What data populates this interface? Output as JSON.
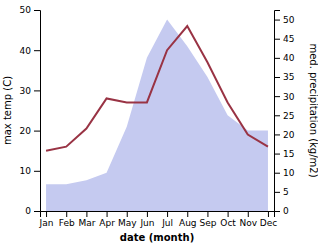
{
  "chart_data": {
    "type": "line",
    "x_label": "date (month)",
    "y_label": "max temp (C)",
    "y2_label": "med. precipitation (kg/m2)",
    "categories": [
      "Jan",
      "Feb",
      "Mar",
      "Apr",
      "May",
      "Jun",
      "Jul",
      "Aug",
      "Sep",
      "Oct",
      "Nov",
      "Dec"
    ],
    "series": [
      {
        "type": "area",
        "color": "#c5caf0",
        "axis": "y2",
        "values": [
          7.0,
          7.0,
          8.0,
          10.0,
          22.0,
          40.0,
          50.0,
          43.0,
          35.0,
          25.0,
          21.0,
          21.0
        ]
      },
      {
        "type": "line",
        "color": "#993344",
        "values": [
          15.0,
          16.0,
          20.5,
          28.0,
          27.0,
          27.0,
          40.0,
          46.0,
          37.0,
          27.0,
          19.0,
          16.0
        ]
      }
    ],
    "ylim": [
      0,
      50
    ],
    "yticks": [
      0,
      10,
      20,
      30,
      40,
      50
    ],
    "y2lim": [
      0,
      52.5
    ],
    "y2ticks": [
      0,
      5,
      10,
      15,
      20,
      25,
      30,
      35,
      40,
      45,
      50
    ]
  }
}
